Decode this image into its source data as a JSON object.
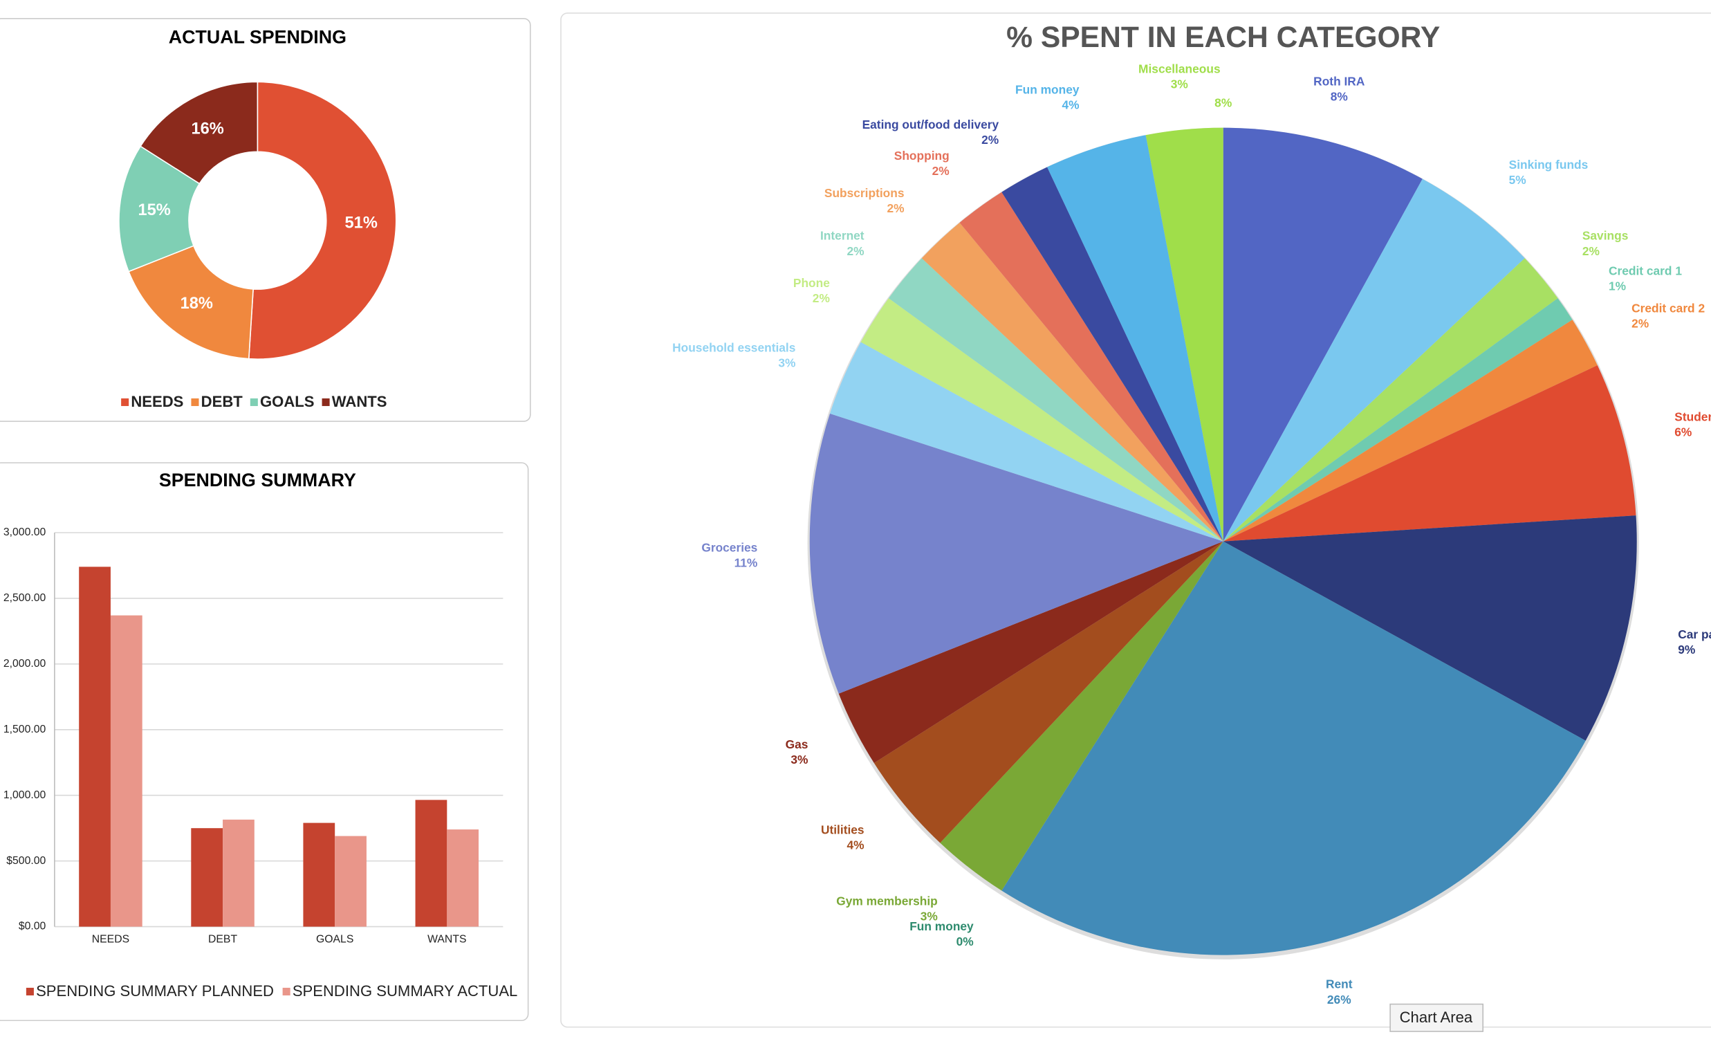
{
  "chart_data": [
    {
      "type": "donut",
      "title": "ACTUAL SPENDING",
      "categories": [
        "NEEDS",
        "DEBT",
        "GOALS",
        "WANTS"
      ],
      "values": [
        51,
        18,
        15,
        16
      ],
      "value_labels": [
        "51%",
        "18%",
        "15%",
        "16%"
      ],
      "colors": [
        "#e05033",
        "#f0883e",
        "#7fcfb4",
        "#8b2a1c"
      ],
      "legend": "bottom"
    },
    {
      "type": "bar",
      "title": "SPENDING SUMMARY",
      "categories": [
        "NEEDS",
        "DEBT",
        "GOALS",
        "WANTS"
      ],
      "series": [
        {
          "name": "SPENDING SUMMARY PLANNED",
          "color": "#c5432f",
          "values": [
            2740,
            750,
            790,
            965
          ]
        },
        {
          "name": "SPENDING SUMMARY ACTUAL",
          "color": "#e9968a",
          "values": [
            2370,
            815,
            690,
            740
          ]
        }
      ],
      "ylim": [
        0,
        3000
      ],
      "yticks": [
        {
          "value": 0,
          "label": "$0.00"
        },
        {
          "value": 500,
          "label": "$500.00"
        },
        {
          "value": 1000,
          "label": "1,000.00"
        },
        {
          "value": 1500,
          "label": "1,500.00"
        },
        {
          "value": 2000,
          "label": "2,000.00"
        },
        {
          "value": 2500,
          "label": "2,500.00"
        },
        {
          "value": 3000,
          "label": "3,000.00"
        }
      ],
      "grid": true,
      "legend": "bottom"
    },
    {
      "type": "pie",
      "title": "% SPENT IN EACH CATEGORY",
      "categories": [
        "Roth IRA",
        "Sinking funds",
        "Savings",
        "Credit card 1",
        "Credit card 2",
        "Student loans",
        "Car payment",
        "Rent",
        "Fun money",
        "Gym membership",
        "Utilities",
        "Gas",
        "Groceries",
        "Household essentials",
        "Phone",
        "Internet",
        "Subscriptions",
        "Shopping",
        "Eating out/food delivery",
        "Fun money",
        "Miscellaneous"
      ],
      "values": [
        8,
        5,
        2,
        1,
        2,
        6,
        9,
        26,
        0,
        3,
        4,
        3,
        11,
        3,
        2,
        2,
        2,
        2,
        2,
        4,
        3
      ],
      "value_labels": [
        "8%",
        "5%",
        "2%",
        "1%",
        "2%",
        "6%",
        "9%",
        "26%",
        "0%",
        "3%",
        "4%",
        "3%",
        "11%",
        "3%",
        "2%",
        "2%",
        "2%",
        "2%",
        "2%",
        "4%",
        "3%"
      ],
      "colors": [
        "#5266c4",
        "#7ac8ef",
        "#a8e063",
        "#6fcbb0",
        "#f0883e",
        "#e04b30",
        "#2c3a7a",
        "#428bb8",
        "#2e8b6e",
        "#7aa836",
        "#a34d1e",
        "#8b2a1c",
        "#7683cc",
        "#92d3f2",
        "#c3ec84",
        "#90d7c3",
        "#f2a15e",
        "#e4705a",
        "#3a4aa0",
        "#55b4e8",
        "#a0de4a"
      ],
      "annotations": [
        "8%"
      ]
    }
  ],
  "tooltip": "Chart Area"
}
